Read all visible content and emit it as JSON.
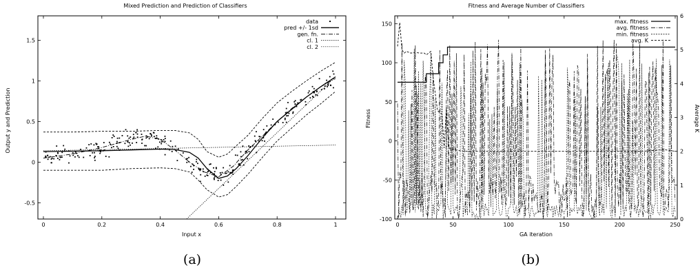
{
  "chart_data": [
    {
      "panel_label": "(a)",
      "type": "scatter",
      "title": "Mixed Prediction and Prediction of Classifiers",
      "xlabel": "Input x",
      "ylabel": "Output y and Prediction",
      "xlim": [
        0,
        1
      ],
      "ylim": [
        -0.7,
        1.8
      ],
      "x_ticks": [
        "0",
        "0.2",
        "0.4",
        "0.6",
        "0.8",
        "1"
      ],
      "y_ticks": [
        "-0.5",
        "0",
        "0.5",
        "1",
        "1.5"
      ],
      "legend_position": "top-right",
      "legend": [
        "data",
        "pred +/- 1sd",
        "gen. fn.",
        "cl. 1",
        "cl. 2"
      ],
      "series": [
        {
          "name": "pred +/- 1sd",
          "x": [
            0,
            0.1,
            0.2,
            0.3,
            0.4,
            0.45,
            0.5,
            0.53,
            0.56,
            0.6,
            0.63,
            0.66,
            0.7,
            0.75,
            0.8,
            0.85,
            0.9,
            0.95,
            1.0
          ],
          "y": [
            0.13,
            0.135,
            0.14,
            0.15,
            0.16,
            0.155,
            0.12,
            0.05,
            -0.08,
            -0.2,
            -0.17,
            -0.08,
            0.08,
            0.3,
            0.5,
            0.65,
            0.8,
            0.93,
            1.05
          ]
        },
        {
          "name": "pred upper",
          "x": [
            0,
            0.1,
            0.2,
            0.3,
            0.4,
            0.45,
            0.5,
            0.53,
            0.56,
            0.6,
            0.63,
            0.66,
            0.7,
            0.75,
            0.8,
            0.85,
            0.9,
            0.95,
            1.0
          ],
          "y": [
            0.37,
            0.37,
            0.38,
            0.38,
            0.39,
            0.39,
            0.36,
            0.28,
            0.13,
            0.06,
            0.1,
            0.2,
            0.33,
            0.54,
            0.73,
            0.87,
            1.0,
            1.12,
            1.23
          ]
        },
        {
          "name": "pred lower",
          "x": [
            0,
            0.1,
            0.2,
            0.3,
            0.4,
            0.45,
            0.5,
            0.53,
            0.56,
            0.6,
            0.63,
            0.66,
            0.7,
            0.75,
            0.8,
            0.85,
            0.9,
            0.95,
            1.0
          ],
          "y": [
            -0.1,
            -0.1,
            -0.1,
            -0.08,
            -0.07,
            -0.08,
            -0.12,
            -0.22,
            -0.34,
            -0.43,
            -0.4,
            -0.3,
            -0.15,
            0.06,
            0.26,
            0.42,
            0.58,
            0.72,
            0.87
          ]
        },
        {
          "name": "gen. fn.",
          "x": [
            0,
            0.1,
            0.2,
            0.3,
            0.35,
            0.4,
            0.45,
            0.5,
            0.55,
            0.6,
            0.65,
            0.7,
            0.75,
            0.8,
            0.85,
            0.9,
            0.95,
            1.0
          ],
          "y": [
            0.05,
            0.1,
            0.18,
            0.28,
            0.32,
            0.28,
            0.15,
            0.0,
            -0.12,
            -0.18,
            -0.05,
            0.15,
            0.32,
            0.5,
            0.66,
            0.8,
            0.93,
            1.03
          ]
        },
        {
          "name": "cl. 1",
          "x": [
            0.49,
            1.0
          ],
          "y": [
            -0.7,
            1.05
          ]
        },
        {
          "name": "cl. 2",
          "x": [
            0,
            1.0
          ],
          "y": [
            0.14,
            0.21
          ]
        }
      ]
    },
    {
      "panel_label": "(b)",
      "type": "line",
      "title": "Fitness and Average Number of Classifiers",
      "xlabel": "GA iteration",
      "ylabel": "Fitness",
      "y2label": "Average K",
      "xlim": [
        0,
        250
      ],
      "ylim": [
        -100,
        160
      ],
      "y2lim": [
        0,
        6
      ],
      "x_ticks": [
        "0",
        "50",
        "100",
        "150",
        "200",
        "250"
      ],
      "y_ticks": [
        "-100",
        "-50",
        "0",
        "50",
        "100",
        "150"
      ],
      "y2_ticks": [
        "0",
        "1",
        "2",
        "3",
        "4",
        "5",
        "6"
      ],
      "legend_position": "top-right",
      "legend": [
        "max. fitness",
        "avg. fitness",
        "min. fitness",
        "avg. K"
      ],
      "series": [
        {
          "name": "max. fitness",
          "x": [
            0,
            10,
            10,
            26,
            26,
            37,
            37,
            41,
            41,
            45,
            45,
            250
          ],
          "y": [
            75,
            75,
            75,
            75,
            86,
            86,
            100,
            100,
            110,
            110,
            120,
            120
          ]
        },
        {
          "name": "avg. K",
          "x": [
            0,
            2,
            4,
            6,
            8,
            12,
            16,
            20,
            24,
            26,
            28,
            30,
            32,
            36,
            40,
            42,
            44,
            46,
            50,
            60,
            80,
            100,
            120,
            140,
            160,
            180,
            200,
            220,
            240,
            250
          ],
          "y": [
            5.1,
            5.8,
            5.0,
            4.9,
            4.95,
            4.9,
            4.92,
            4.9,
            4.9,
            4.85,
            4.9,
            4.95,
            4.2,
            3.2,
            3.1,
            2.1,
            3.3,
            2.1,
            2.05,
            2.0,
            2.0,
            2.0,
            2.0,
            2.0,
            2.0,
            2.0,
            2.0,
            2.0,
            2.05,
            2.0
          ]
        }
      ]
    }
  ]
}
